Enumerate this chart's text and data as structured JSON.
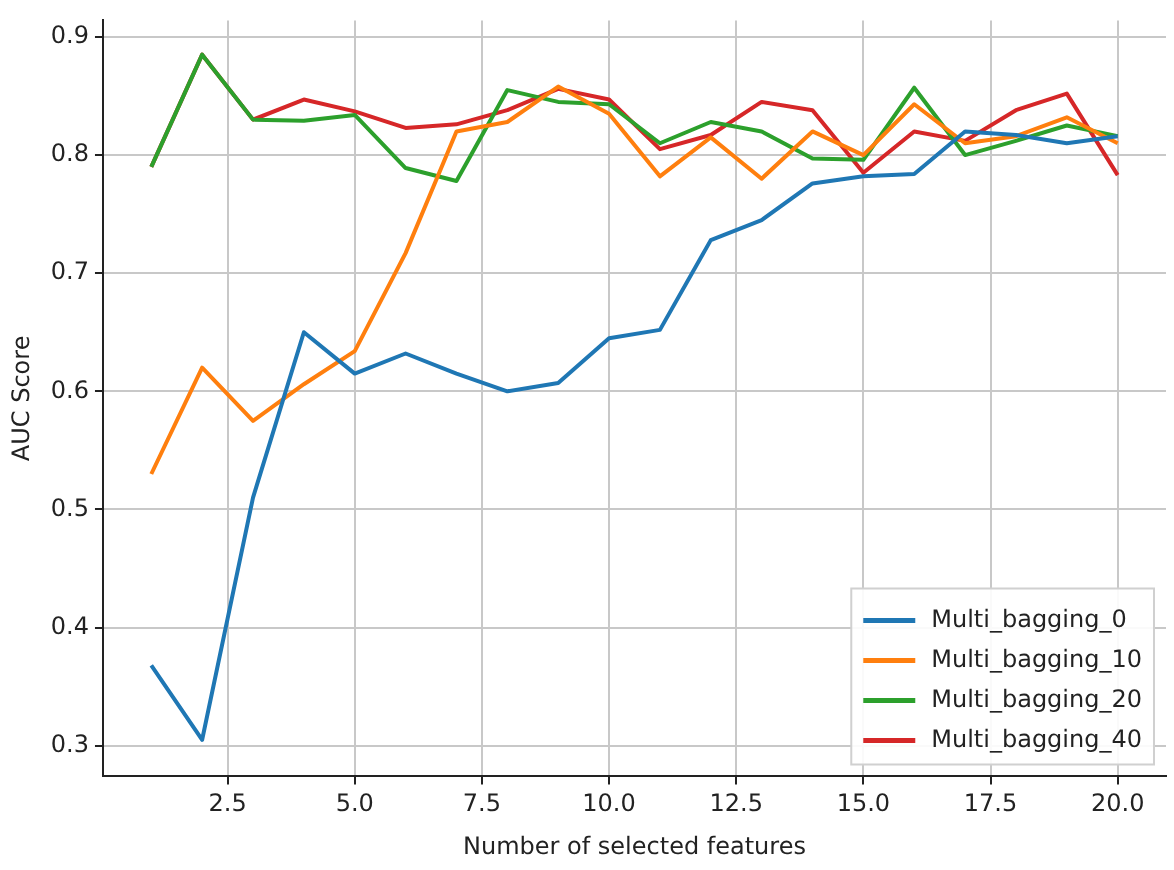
{
  "chart_data": {
    "type": "line",
    "xlabel": "Number of selected features",
    "ylabel": "AUC Score",
    "x": [
      1,
      2,
      3,
      4,
      5,
      6,
      7,
      8,
      9,
      10,
      11,
      12,
      13,
      14,
      15,
      16,
      17,
      18,
      19,
      20
    ],
    "series": [
      {
        "name": "Multi_bagging_0",
        "color": "#1f77b4",
        "values": [
          0.368,
          0.305,
          0.51,
          0.65,
          0.615,
          0.632,
          0.615,
          0.6,
          0.607,
          0.645,
          0.652,
          0.728,
          0.745,
          0.776,
          0.782,
          0.784,
          0.82,
          0.817,
          0.81,
          0.816
        ]
      },
      {
        "name": "Multi_bagging_10",
        "color": "#ff7f0e",
        "values": [
          0.53,
          0.62,
          0.575,
          0.606,
          0.634,
          0.717,
          0.82,
          0.828,
          0.858,
          0.835,
          0.782,
          0.815,
          0.78,
          0.82,
          0.8,
          0.843,
          0.81,
          0.816,
          0.832,
          0.81
        ]
      },
      {
        "name": "Multi_bagging_20",
        "color": "#2ca02c",
        "values": [
          0.79,
          0.885,
          0.83,
          0.829,
          0.834,
          0.789,
          0.778,
          0.855,
          0.845,
          0.843,
          0.81,
          0.828,
          0.82,
          0.797,
          0.796,
          0.857,
          0.8,
          0.812,
          0.825,
          0.816
        ]
      },
      {
        "name": "Multi_bagging_40",
        "color": "#d62728",
        "values": [
          0.79,
          0.885,
          0.83,
          0.847,
          0.837,
          0.823,
          0.826,
          0.838,
          0.856,
          0.847,
          0.805,
          0.817,
          0.845,
          0.838,
          0.785,
          0.82,
          0.812,
          0.838,
          0.852,
          0.783
        ]
      }
    ],
    "xlim": [
      0.05,
      20.95
    ],
    "xticks": [
      {
        "value": 2.5,
        "label": "2.5"
      },
      {
        "value": 5,
        "label": "5.0"
      },
      {
        "value": 7.5,
        "label": "7.5"
      },
      {
        "value": 10,
        "label": "10.0"
      },
      {
        "value": 12.5,
        "label": "12.5"
      },
      {
        "value": 15,
        "label": "15.0"
      },
      {
        "value": 17.5,
        "label": "17.5"
      },
      {
        "value": 20,
        "label": "20.0"
      }
    ],
    "ylim": [
      0.274,
      0.914
    ],
    "yticks": [
      0.3,
      0.4,
      0.5,
      0.6,
      0.7,
      0.8,
      0.9
    ],
    "grid": true,
    "legend": "bottom right",
    "marker": "none",
    "line_style": "solid"
  }
}
